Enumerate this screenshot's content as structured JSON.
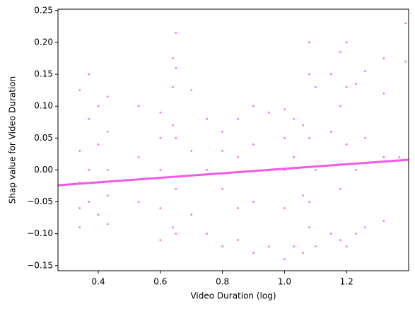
{
  "chart_data": {
    "type": "scatter",
    "xlabel": "Video Duration (log)",
    "ylabel": "Shap value for Video Duration",
    "color": "#f05ae8",
    "xlim": [
      0.27,
      1.4
    ],
    "ylim": [
      -0.158,
      0.252
    ],
    "xticks": [
      0.4,
      0.6,
      0.8,
      {
        "value": 1.0,
        "label": "1.0"
      },
      1.2
    ],
    "yticks": [
      {
        "value": -0.15,
        "label": "−0.15"
      },
      {
        "value": -0.1,
        "label": "−0.10"
      },
      {
        "value": -0.05,
        "label": "−0.05"
      },
      {
        "value": 0,
        "label": "0.00"
      },
      {
        "value": 0.05,
        "label": "0.05"
      },
      {
        "value": 0.1,
        "label": "0.10"
      },
      {
        "value": 0.15,
        "label": "0.15"
      },
      {
        "value": 0.2,
        "label": "0.20"
      },
      {
        "value": 0.25,
        "label": "0.25"
      }
    ],
    "x": [
      0.34,
      0.34,
      0.34,
      0.34,
      0.34,
      0.37,
      0.37,
      0.37,
      0.37,
      0.4,
      0.4,
      0.4,
      0.4,
      0.43,
      0.43,
      0.43,
      0.43,
      0.43,
      0.53,
      0.53,
      0.53,
      0.6,
      0.6,
      0.6,
      0.6,
      0.6,
      0.64,
      0.64,
      0.64,
      0.64,
      0.65,
      0.65,
      0.65,
      0.65,
      0.65,
      0.7,
      0.7,
      0.7,
      0.75,
      0.75,
      0.75,
      0.8,
      0.8,
      0.8,
      0.8,
      0.85,
      0.85,
      0.85,
      0.85,
      0.9,
      0.9,
      0.9,
      0.9,
      0.95,
      0.95,
      0.95,
      1.0,
      1.0,
      1.0,
      1.0,
      1.0,
      1.03,
      1.03,
      1.03,
      1.06,
      1.06,
      1.06,
      1.08,
      1.08,
      1.08,
      1.08,
      1.08,
      1.1,
      1.1,
      1.1,
      1.15,
      1.15,
      1.15,
      1.18,
      1.18,
      1.18,
      1.18,
      1.2,
      1.2,
      1.2,
      1.2,
      1.23,
      1.23,
      1.23,
      1.26,
      1.26,
      1.26,
      1.32,
      1.32,
      1.32,
      1.32,
      1.37,
      1.39,
      1.39
    ],
    "y": [
      -0.09,
      -0.02,
      0.03,
      0.125,
      -0.06,
      0.15,
      0.08,
      -0.05,
      0.0,
      0.1,
      -0.07,
      0.04,
      -0.02,
      0.115,
      -0.085,
      0.06,
      0.0,
      -0.04,
      0.1,
      -0.05,
      0.02,
      0.09,
      -0.11,
      0.0,
      0.05,
      -0.06,
      0.175,
      -0.09,
      0.07,
      0.13,
      0.215,
      -0.1,
      0.16,
      0.05,
      -0.03,
      0.125,
      -0.07,
      0.03,
      0.08,
      -0.1,
      0.0,
      0.06,
      -0.12,
      -0.03,
      0.03,
      0.08,
      -0.11,
      0.02,
      -0.06,
      0.1,
      -0.13,
      0.04,
      -0.05,
      0.09,
      -0.12,
      0.0,
      0.095,
      -0.14,
      0.05,
      -0.06,
      0.0,
      0.08,
      -0.12,
      0.02,
      0.07,
      -0.13,
      -0.04,
      0.2,
      -0.09,
      0.15,
      0.05,
      -0.05,
      0.13,
      -0.12,
      0.0,
      0.15,
      -0.1,
      0.06,
      0.185,
      -0.11,
      0.1,
      -0.03,
      0.2,
      -0.12,
      0.13,
      0.04,
      0.135,
      -0.1,
      0.0,
      0.155,
      -0.09,
      0.05,
      0.175,
      -0.08,
      0.12,
      0.02,
      0.02,
      0.23,
      0.17
    ],
    "fit": {
      "x": [
        0.27,
        1.4
      ],
      "y": [
        -0.024,
        0.016
      ]
    }
  }
}
